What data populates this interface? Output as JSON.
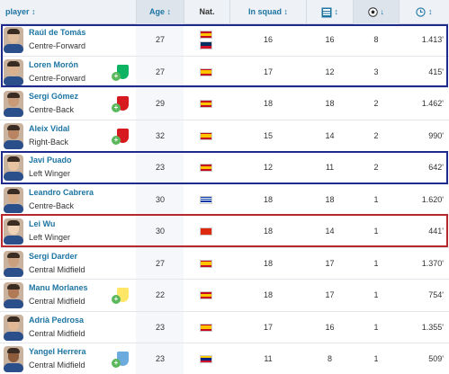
{
  "header": {
    "player": "player",
    "player_sort_icon": "sort-arrows-icon",
    "age": "Age",
    "age_sort_icon": "sort-arrows-icon",
    "nat": "Nat.",
    "in_squad": "In squad",
    "in_squad_sort_icon": "sort-arrows-icon",
    "appearances_icon": "lineup-icon",
    "goals_icon": "football-icon",
    "goals_sort_icon": "sort-down-icon",
    "minutes_sort_icon": "sort-arrows-icon",
    "sort_glyph": "↕",
    "sort_down_glyph": "↓"
  },
  "colors": {
    "link": "#1d75a3",
    "header_bg": "#eef1f5",
    "box_blue": "#1e2a8c",
    "box_red": "#b5282e"
  },
  "rows": [
    {
      "name": "Raúl de Tomás",
      "position": "Centre-Forward",
      "age": "27",
      "nationality": "Spain, Dominican Republic",
      "in_squad": "16",
      "apps": "16",
      "goals": "8",
      "minutes": "1.413'",
      "club_icon": ""
    },
    {
      "name": "Loren Morón",
      "position": "Centre-Forward",
      "age": "27",
      "nationality": "Spain",
      "in_squad": "17",
      "apps": "12",
      "goals": "3",
      "minutes": "415'",
      "club_icon": "real-betis-crest-icon"
    },
    {
      "name": "Sergi Gómez",
      "position": "Centre-Back",
      "age": "29",
      "nationality": "Spain",
      "in_squad": "18",
      "apps": "18",
      "goals": "2",
      "minutes": "1.462'",
      "club_icon": "sevilla-crest-icon"
    },
    {
      "name": "Aleix Vidal",
      "position": "Right-Back",
      "age": "32",
      "nationality": "Spain",
      "in_squad": "15",
      "apps": "14",
      "goals": "2",
      "minutes": "990'",
      "club_icon": "sevilla-crest-icon"
    },
    {
      "name": "Javi Puado",
      "position": "Left Winger",
      "age": "23",
      "nationality": "Spain",
      "in_squad": "12",
      "apps": "11",
      "goals": "2",
      "minutes": "642'",
      "club_icon": ""
    },
    {
      "name": "Leandro Cabrera",
      "position": "Centre-Back",
      "age": "30",
      "nationality": "Uruguay",
      "in_squad": "18",
      "apps": "18",
      "goals": "1",
      "minutes": "1.620'",
      "club_icon": ""
    },
    {
      "name": "Lei Wu",
      "position": "Left Winger",
      "age": "30",
      "nationality": "China",
      "in_squad": "18",
      "apps": "14",
      "goals": "1",
      "minutes": "441'",
      "club_icon": ""
    },
    {
      "name": "Sergi Darder",
      "position": "Central Midfield",
      "age": "27",
      "nationality": "Spain",
      "in_squad": "18",
      "apps": "17",
      "goals": "1",
      "minutes": "1.370'",
      "club_icon": ""
    },
    {
      "name": "Manu Morlanes",
      "position": "Central Midfield",
      "age": "22",
      "nationality": "Spain",
      "in_squad": "18",
      "apps": "17",
      "goals": "1",
      "minutes": "754'",
      "club_icon": "villarreal-crest-icon"
    },
    {
      "name": "Adrià Pedrosa",
      "position": "Central Midfield",
      "age": "23",
      "nationality": "Spain",
      "in_squad": "17",
      "apps": "16",
      "goals": "1",
      "minutes": "1.355'",
      "club_icon": ""
    },
    {
      "name": "Yangel Herrera",
      "position": "Central Midfield",
      "age": "23",
      "nationality": "Venezuela",
      "in_squad": "11",
      "apps": "8",
      "goals": "1",
      "minutes": "509'",
      "club_icon": "manchester-city-crest-icon"
    }
  ]
}
